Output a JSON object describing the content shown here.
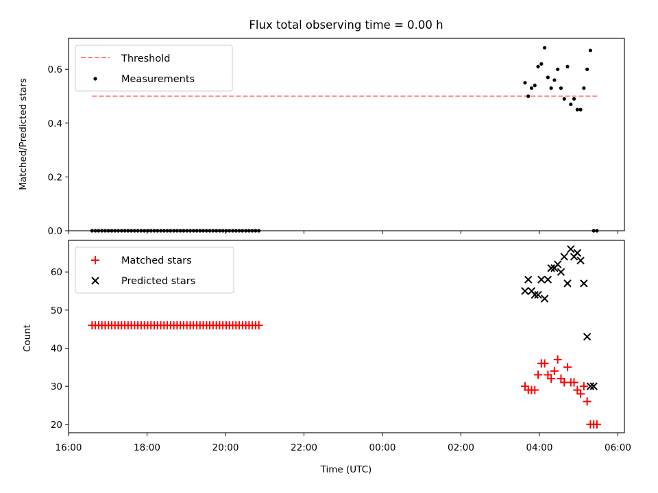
{
  "chart_data": [
    {
      "type": "scatter",
      "title": "Flux total observing time = 0.00 h",
      "xlabel": "",
      "ylabel": "Matched/Predicted stars",
      "ylim": [
        0.0,
        0.715
      ],
      "yticks": [
        0.0,
        0.2,
        0.4,
        0.6
      ],
      "ytick_labels": [
        "0.0",
        "0.2",
        "0.4",
        "0.6"
      ],
      "legend_position": "upper-left",
      "colors": {
        "threshold": "#ff7f7f",
        "measurements": "#000000"
      },
      "threshold": {
        "name": "Threshold",
        "value": 0.5,
        "x_start": "16:36",
        "x_end": "05:30"
      },
      "series": [
        {
          "name": "Measurements",
          "x": [
            "16:36",
            "16:41",
            "16:46",
            "16:51",
            "16:56",
            "17:01",
            "17:06",
            "17:11",
            "17:16",
            "17:21",
            "17:26",
            "17:31",
            "17:36",
            "17:41",
            "17:46",
            "17:51",
            "17:56",
            "18:01",
            "18:06",
            "18:11",
            "18:16",
            "18:21",
            "18:26",
            "18:31",
            "18:36",
            "18:41",
            "18:46",
            "18:51",
            "18:56",
            "19:01",
            "19:06",
            "19:11",
            "19:16",
            "19:21",
            "19:26",
            "19:31",
            "19:36",
            "19:41",
            "19:46",
            "19:51",
            "19:56",
            "20:01",
            "20:06",
            "20:11",
            "20:16",
            "20:21",
            "20:26",
            "20:31",
            "20:36",
            "20:41",
            "20:46",
            "20:51",
            "03:38",
            "03:43",
            "03:48",
            "03:53",
            "03:58",
            "04:03",
            "04:08",
            "04:13",
            "04:18",
            "04:23",
            "04:28",
            "04:33",
            "04:38",
            "04:43",
            "04:48",
            "04:53",
            "04:58",
            "05:03",
            "05:08",
            "05:13",
            "05:18",
            "05:23",
            "05:28"
          ],
          "y": [
            0,
            0,
            0,
            0,
            0,
            0,
            0,
            0,
            0,
            0,
            0,
            0,
            0,
            0,
            0,
            0,
            0,
            0,
            0,
            0,
            0,
            0,
            0,
            0,
            0,
            0,
            0,
            0,
            0,
            0,
            0,
            0,
            0,
            0,
            0,
            0,
            0,
            0,
            0,
            0,
            0,
            0,
            0,
            0,
            0,
            0,
            0,
            0,
            0,
            0,
            0,
            0,
            0.55,
            0.5,
            0.53,
            0.54,
            0.61,
            0.62,
            0.68,
            0.57,
            0.53,
            0.56,
            0.6,
            0.53,
            0.49,
            0.61,
            0.47,
            0.49,
            0.45,
            0.45,
            0.53,
            0.6,
            0.67,
            0.0,
            0.0
          ]
        }
      ]
    },
    {
      "type": "scatter",
      "title": "",
      "xlabel": "Time (UTC)",
      "ylabel": "Count",
      "ylim": [
        17.8,
        68.3
      ],
      "yticks": [
        20,
        30,
        40,
        50,
        60
      ],
      "ytick_labels": [
        "20",
        "30",
        "40",
        "50",
        "60"
      ],
      "x_axis": {
        "start": "16:00",
        "end": "06:10",
        "ticks": [
          "16:00",
          "18:00",
          "20:00",
          "22:00",
          "00:00",
          "02:00",
          "04:00",
          "06:00"
        ],
        "tick_labels": [
          "16:00",
          "18:00",
          "20:00",
          "22:00",
          "00:00",
          "02:00",
          "04:00",
          "06:00"
        ]
      },
      "legend_position": "upper-left",
      "colors": {
        "matched": "#ff0000",
        "predicted": "#000000"
      },
      "series": [
        {
          "name": "Matched stars",
          "x": [
            "16:36",
            "16:41",
            "16:46",
            "16:51",
            "16:56",
            "17:01",
            "17:06",
            "17:11",
            "17:16",
            "17:21",
            "17:26",
            "17:31",
            "17:36",
            "17:41",
            "17:46",
            "17:51",
            "17:56",
            "18:01",
            "18:06",
            "18:11",
            "18:16",
            "18:21",
            "18:26",
            "18:31",
            "18:36",
            "18:41",
            "18:46",
            "18:51",
            "18:56",
            "19:01",
            "19:06",
            "19:11",
            "19:16",
            "19:21",
            "19:26",
            "19:31",
            "19:36",
            "19:41",
            "19:46",
            "19:51",
            "19:56",
            "20:01",
            "20:06",
            "20:11",
            "20:16",
            "20:21",
            "20:26",
            "20:31",
            "20:36",
            "20:41",
            "20:46",
            "20:51",
            "03:38",
            "03:43",
            "03:48",
            "03:53",
            "03:58",
            "04:03",
            "04:08",
            "04:13",
            "04:18",
            "04:23",
            "04:28",
            "04:33",
            "04:38",
            "04:43",
            "04:48",
            "04:53",
            "04:58",
            "05:03",
            "05:08",
            "05:13",
            "05:18",
            "05:23",
            "05:28"
          ],
          "y": [
            46,
            46,
            46,
            46,
            46,
            46,
            46,
            46,
            46,
            46,
            46,
            46,
            46,
            46,
            46,
            46,
            46,
            46,
            46,
            46,
            46,
            46,
            46,
            46,
            46,
            46,
            46,
            46,
            46,
            46,
            46,
            46,
            46,
            46,
            46,
            46,
            46,
            46,
            46,
            46,
            46,
            46,
            46,
            46,
            46,
            46,
            46,
            46,
            46,
            46,
            46,
            46,
            30,
            29,
            29,
            29,
            33,
            36,
            36,
            33,
            32,
            34,
            37,
            32,
            31,
            35,
            31,
            31,
            29,
            28,
            30,
            26,
            20,
            20,
            20
          ]
        },
        {
          "name": "Predicted stars",
          "x": [
            "03:38",
            "03:43",
            "03:48",
            "03:53",
            "03:58",
            "04:03",
            "04:08",
            "04:13",
            "04:18",
            "04:23",
            "04:28",
            "04:33",
            "04:38",
            "04:43",
            "04:48",
            "04:53",
            "04:58",
            "05:03",
            "05:08",
            "05:13",
            "05:18",
            "05:23"
          ],
          "y": [
            55,
            58,
            55,
            54,
            54,
            58,
            53,
            58,
            61,
            61,
            62,
            60,
            64,
            57,
            66,
            64,
            65,
            63,
            57,
            43,
            30,
            30
          ]
        }
      ]
    }
  ]
}
